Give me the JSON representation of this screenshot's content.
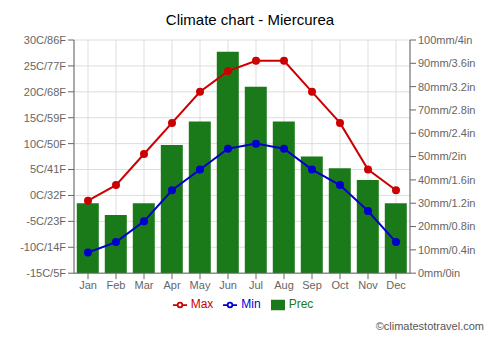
{
  "chart_data": {
    "type": "combo",
    "title": "Climate chart - Miercurea",
    "categories": [
      "Jan",
      "Feb",
      "Mar",
      "Apr",
      "May",
      "Jun",
      "Jul",
      "Aug",
      "Sep",
      "Oct",
      "Nov",
      "Dec"
    ],
    "series": [
      {
        "name": "Prec",
        "type": "bar",
        "color": "#1a7a1a",
        "axis": "y2",
        "values": [
          30,
          25,
          30,
          55,
          65,
          95,
          80,
          65,
          50,
          45,
          40,
          30
        ]
      },
      {
        "name": "Min",
        "type": "line",
        "color": "#0000cc",
        "marker": "circle",
        "values": [
          -11,
          -9,
          -5,
          1,
          5,
          9,
          10,
          9,
          5,
          2,
          -3,
          -9
        ]
      },
      {
        "name": "Max",
        "type": "line",
        "color": "#cc0000",
        "marker": "circle",
        "values": [
          -1,
          2,
          8,
          14,
          20,
          24,
          26,
          26,
          20,
          14,
          5,
          1
        ]
      }
    ],
    "ylim": [
      -15,
      30
    ],
    "yticks": [
      {
        "value": -15,
        "label": "-15C/5F"
      },
      {
        "value": -10,
        "label": "-10C/14F"
      },
      {
        "value": -5,
        "label": "-5C/23F"
      },
      {
        "value": 0,
        "label": "0C/32F"
      },
      {
        "value": 5,
        "label": "5C/41F"
      },
      {
        "value": 10,
        "label": "10C/50F"
      },
      {
        "value": 15,
        "label": "15C/59F"
      },
      {
        "value": 20,
        "label": "20C/68F"
      },
      {
        "value": 25,
        "label": "25C/77F"
      },
      {
        "value": 30,
        "label": "30C/86F"
      }
    ],
    "y2lim": [
      0,
      100
    ],
    "y2ticks": [
      {
        "value": 0,
        "label": "0mm/0in"
      },
      {
        "value": 10,
        "label": "10mm/0.4in"
      },
      {
        "value": 20,
        "label": "20mm/0.8in"
      },
      {
        "value": 30,
        "label": "30mm/1.2in"
      },
      {
        "value": 40,
        "label": "40mm/1.6in"
      },
      {
        "value": 50,
        "label": "50mm/2in"
      },
      {
        "value": 60,
        "label": "60mm/2.4in"
      },
      {
        "value": 70,
        "label": "70mm/2.8in"
      },
      {
        "value": 80,
        "label": "80mm/3.2in"
      },
      {
        "value": 90,
        "label": "90mm/3.6in"
      },
      {
        "value": 100,
        "label": "100mm/4in"
      }
    ],
    "grid": true,
    "legend": "bottom",
    "annotations": [
      "©climatestotravel.com"
    ]
  }
}
